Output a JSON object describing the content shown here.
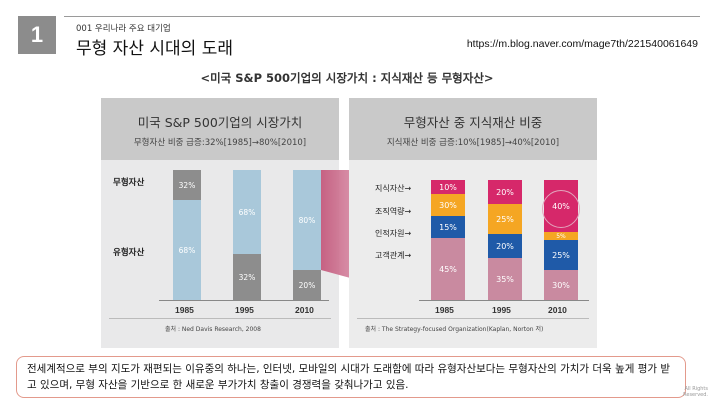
{
  "slide": {
    "number": "1",
    "subtitle": "001 우리나라 주요 대기업",
    "title": "무형 자산 시대의 도래",
    "source_url": "https://m.blog.naver.com/mage7th/221540061649"
  },
  "figure": {
    "title": "<미국 S&P 500기업의 시장가치 : 지식재산 등 무형자산>",
    "left": {
      "title": "미국 S&P 500기업의 시장가치",
      "subtitle": "무형자산 비중 급증:32%[1985]→80%[2010]",
      "row_labels": [
        "무형자산",
        "유형자산"
      ],
      "years": [
        "1985",
        "1995",
        "2010"
      ],
      "intangible": [
        "32%",
        "68%",
        "80%"
      ],
      "tangible": [
        "68%",
        "32%",
        "20%"
      ],
      "credit": "출처 : Ned Davis Research, 2008"
    },
    "right": {
      "title": "무형자산 중 지식재산 비중",
      "subtitle": "지식재산 비중 급증:10%[1985]→40%[2010]",
      "row_labels": [
        "지식자산→",
        "조직역량→",
        "인적자원→",
        "고객관계→"
      ],
      "years": [
        "1985",
        "1995",
        "2010"
      ],
      "ip": [
        "10%",
        "20%",
        "40%"
      ],
      "org": [
        "30%",
        "25%",
        "5%"
      ],
      "hr": [
        "15%",
        "20%",
        "25%"
      ],
      "customer": [
        "45%",
        "35%",
        "30%"
      ],
      "credit": "출처 : The Strategy-focused Organization(Kaplan, Norton 저)"
    }
  },
  "chart_data": [
    {
      "type": "bar",
      "title": "미국 S&P 500기업의 시장가치",
      "categories": [
        "1985",
        "1995",
        "2010"
      ],
      "series": [
        {
          "name": "무형자산",
          "values": [
            32,
            68,
            80
          ]
        },
        {
          "name": "유형자산",
          "values": [
            68,
            32,
            20
          ]
        }
      ],
      "stacked": true
    },
    {
      "type": "bar",
      "title": "무형자산 중 지식재산 비중",
      "categories": [
        "1985",
        "1995",
        "2010"
      ],
      "series": [
        {
          "name": "지식자산",
          "values": [
            10,
            20,
            40
          ]
        },
        {
          "name": "조직역량",
          "values": [
            30,
            25,
            5
          ]
        },
        {
          "name": "인적자원",
          "values": [
            15,
            20,
            25
          ]
        },
        {
          "name": "고객관계",
          "values": [
            45,
            35,
            30
          ]
        }
      ],
      "stacked": true
    }
  ],
  "colors": {
    "intangible": "#a9c8da",
    "tangible": "#8d8d8d",
    "ip": "#d6286a",
    "org": "#f5a623",
    "hr": "#1f5aa8",
    "customer": "#c98aa0",
    "accent_border": "#e39a8c"
  },
  "summary": "전세계적으로 부의 지도가 재편되는 이유중의 하나는, 인터넷, 모바일의 시대가 도래함에 따라 유형자산보다는 무형자산의 가치가 더욱 높게 평가 받고 있으며, 무형 자산을 기반으로 한 새로운 부가가치 창출이 경쟁력을 갖춰나가고 있음.",
  "rights_text": [
    "All Rights",
    "Reserved."
  ]
}
